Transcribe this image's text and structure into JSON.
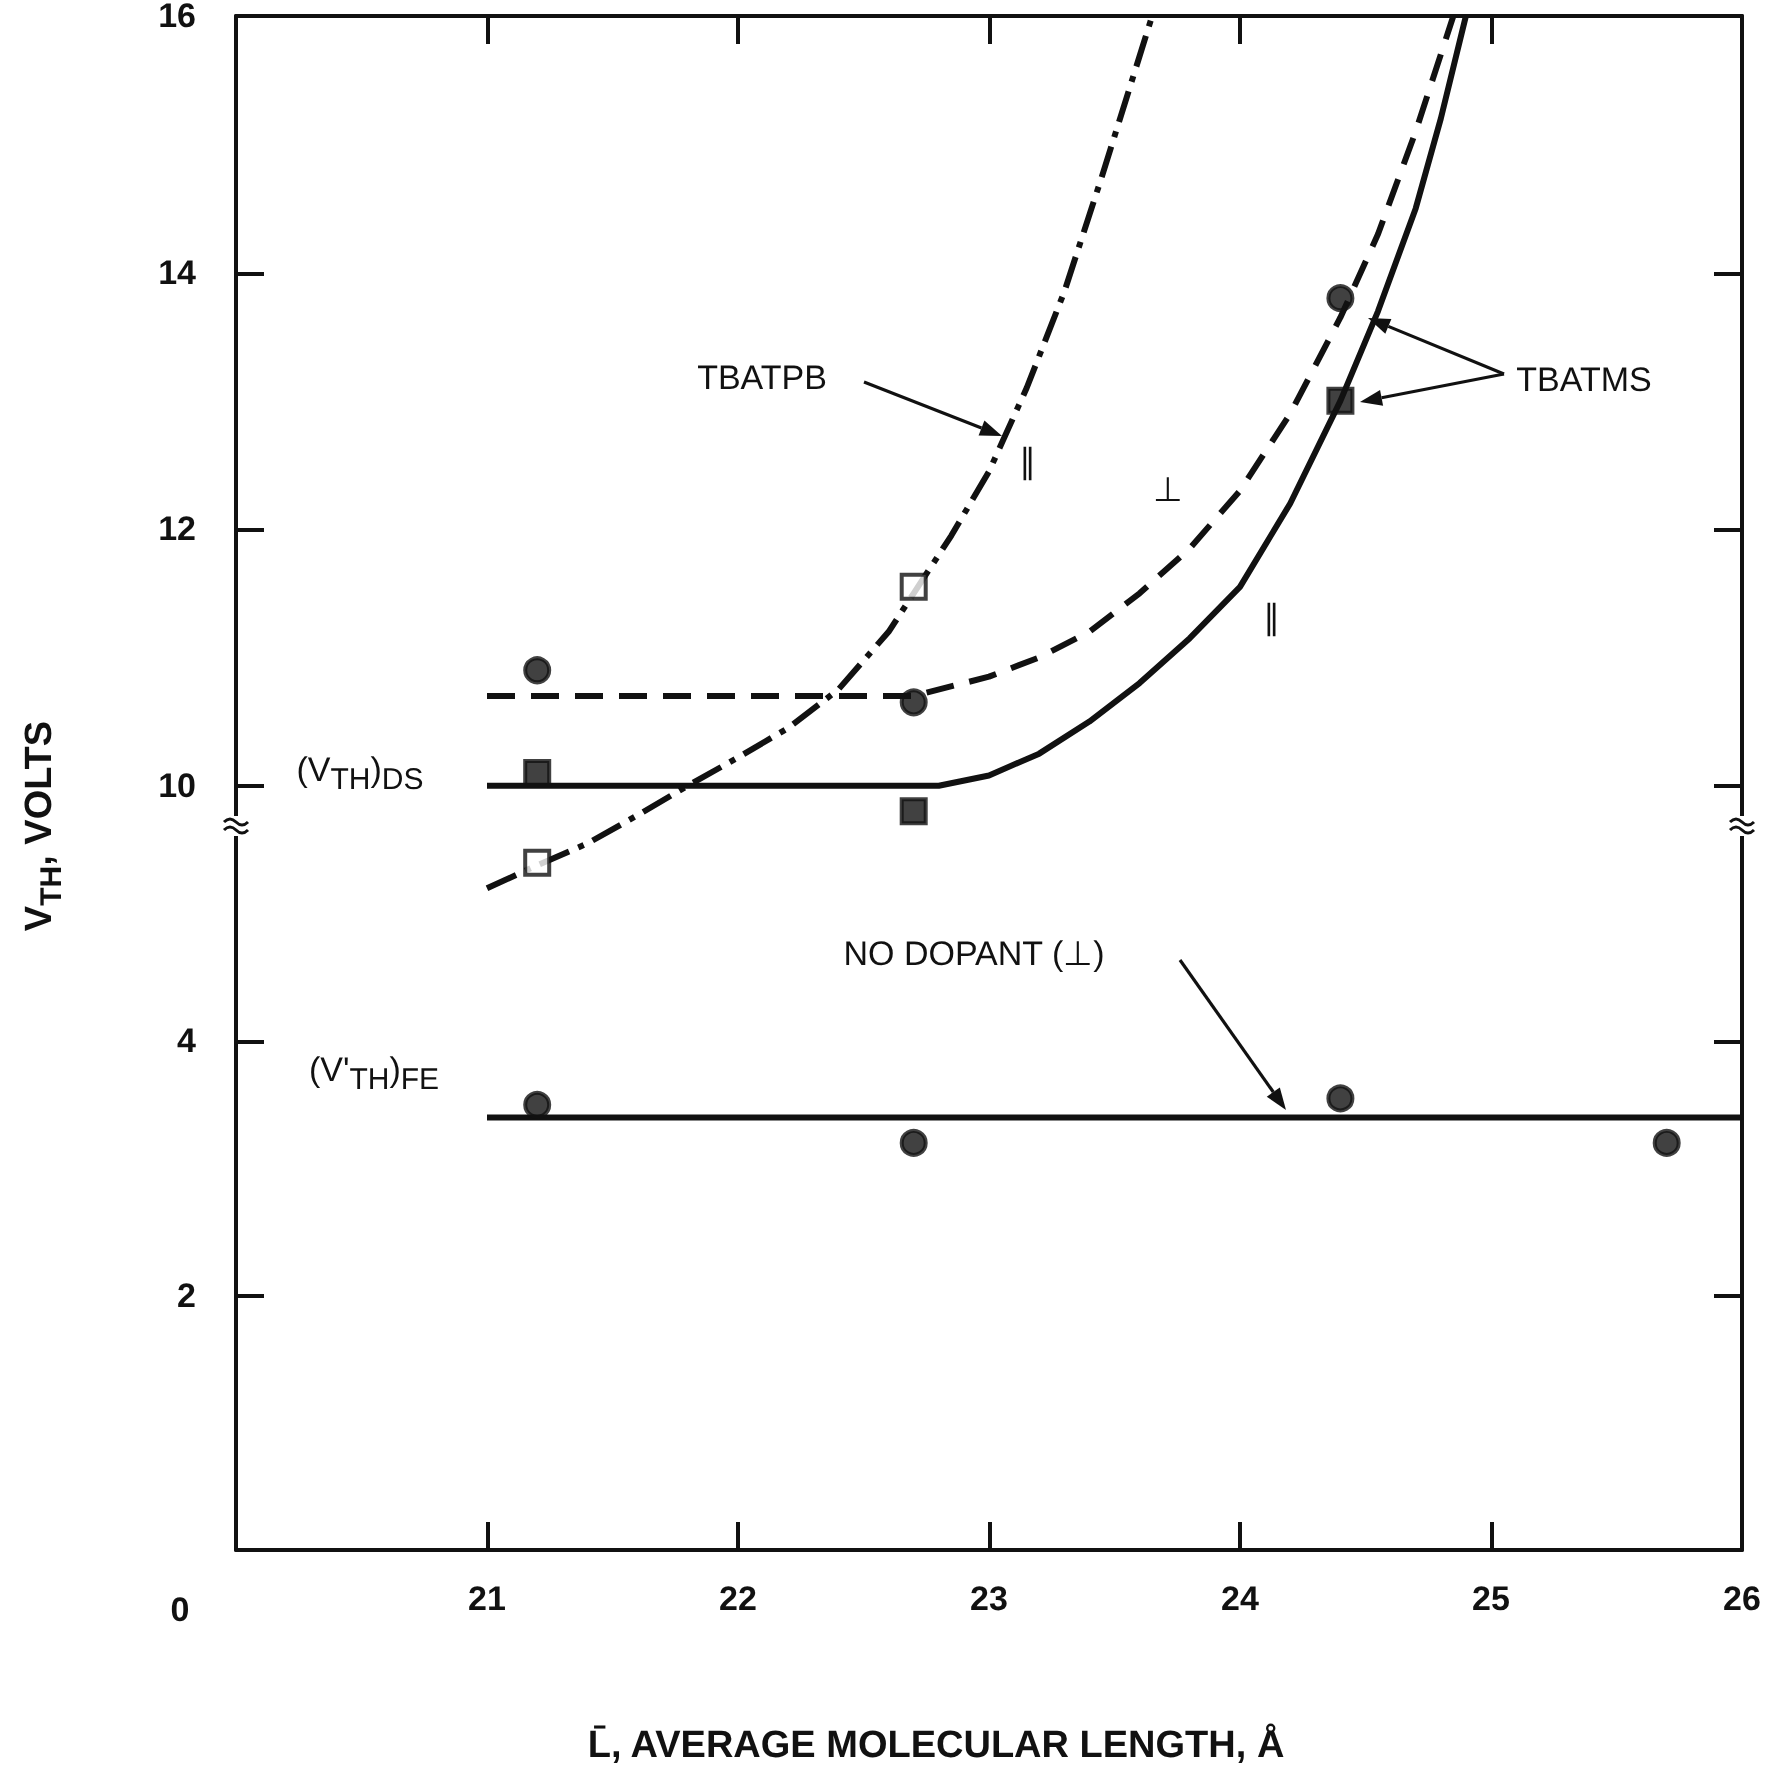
{
  "chart_data": [
    {
      "type": "line",
      "ylabel": "V$_{TH}$, VOLTS",
      "xlim": [
        20,
        26
      ],
      "xticks": [
        21,
        22,
        23,
        24,
        25,
        26
      ],
      "ylim": [
        9,
        16
      ],
      "yticks": [
        10,
        12,
        14,
        16
      ],
      "tick_labels": "y",
      "grid": false,
      "annotations": [
        "TBATPB",
        "∥",
        "⊥",
        "∥",
        "TBATMS",
        "(V$_{TH}$)$_{DS}$"
      ],
      "series": [
        {
          "color": "#111111",
          "line_style": "solid",
          "marker": "none",
          "x": [
            21,
            22,
            22.8,
            23,
            23.2,
            23.4,
            23.6,
            23.8,
            24,
            24.2,
            24.4,
            24.55,
            24.7,
            24.8,
            24.9
          ],
          "values": [
            10,
            10,
            10,
            10.08,
            10.25,
            10.5,
            10.8,
            11.15,
            11.55,
            12.2,
            13.0,
            13.7,
            14.5,
            15.2,
            16
          ]
        },
        {
          "color": "#111111",
          "line_style": "dashed",
          "marker": "none",
          "x": [
            21,
            22,
            22.7,
            23,
            23.2,
            23.4,
            23.6,
            23.8,
            24,
            24.2,
            24.4,
            24.55,
            24.7,
            24.85
          ],
          "values": [
            10.7,
            10.7,
            10.7,
            10.85,
            11.0,
            11.2,
            11.5,
            11.85,
            12.3,
            12.9,
            13.65,
            14.3,
            15.1,
            16
          ]
        },
        {
          "color": "#111111",
          "line_style": "dashdot",
          "marker": "none",
          "x": [
            21,
            21.2,
            21.4,
            21.6,
            21.8,
            22,
            22.2,
            22.4,
            22.6,
            22.7,
            22.85,
            23,
            23.15,
            23.3,
            23.45,
            23.65
          ],
          "values": [
            9.2,
            9.38,
            9.55,
            9.77,
            10,
            10.22,
            10.45,
            10.75,
            11.2,
            11.5,
            11.95,
            12.45,
            13.1,
            13.85,
            14.75,
            16
          ]
        },
        {
          "type": "scatter",
          "color": "#111111",
          "marker": "circle",
          "x": [
            21.2,
            22.7,
            24.4
          ],
          "values": [
            10.9,
            10.65,
            13.8
          ]
        },
        {
          "type": "scatter",
          "color": "#111111",
          "marker": "square",
          "x": [
            21.2,
            22.7,
            24.4
          ],
          "values": [
            10.1,
            9.8,
            13.0
          ]
        },
        {
          "type": "scatter",
          "color": "#ffffff",
          "marker": "square",
          "x": [
            21.2,
            22.7
          ],
          "values": [
            9.4,
            11.55
          ]
        }
      ]
    },
    {
      "type": "line",
      "xlabel": "L̄, AVERAGE MOLECULAR LENGTH, Å",
      "xlim": [
        20,
        26
      ],
      "xticks": [
        21,
        22,
        23,
        24,
        25,
        26
      ],
      "ylim": [
        0,
        5
      ],
      "yticks": [
        {
          "value": 0,
          "label": null
        },
        2,
        4
      ],
      "grid": false,
      "annotations": [
        "NO DOPANT (⊥)",
        "(V'$_{TH}$)$_{FE}$",
        "0"
      ],
      "series": [
        {
          "color": "#111111",
          "line_style": "solid",
          "marker": "none",
          "x": [
            21,
            26
          ],
          "values": [
            3.4,
            3.4
          ]
        },
        {
          "type": "scatter",
          "color": "#111111",
          "marker": "circle",
          "x": [
            21.2,
            22.7,
            24.4,
            25.7
          ],
          "values": [
            3.5,
            3.2,
            3.55,
            3.2
          ]
        }
      ]
    }
  ]
}
